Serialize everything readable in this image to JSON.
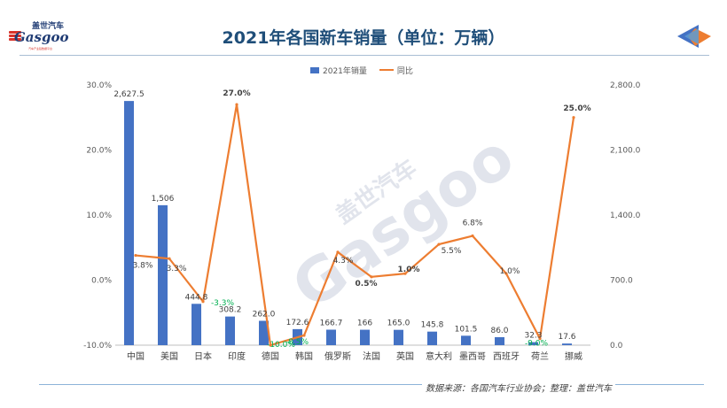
{
  "logo": {
    "name_cn": "盖世汽车",
    "name_en": "Gasgoo",
    "tagline": "汽车产业链数据平台"
  },
  "watermark": {
    "text_cn": "盖世汽车",
    "text_en": "Gasgoo"
  },
  "colors": {
    "bar": "#4472c4",
    "line": "#ed7d31",
    "title": "#1f4e79",
    "negative_label": "#00b050"
  },
  "chart_data": {
    "type": "bar",
    "title": "2021年各国新车销量（单位：万辆）",
    "categories": [
      "中国",
      "美国",
      "日本",
      "印度",
      "德国",
      "韩国",
      "俄罗斯",
      "法国",
      "英国",
      "意大利",
      "墨西哥",
      "西班牙",
      "荷兰",
      "挪威"
    ],
    "series": [
      {
        "name": "2021年销量",
        "type": "bar",
        "axis": "right",
        "values": [
          2627.5,
          1506,
          444.8,
          308.2,
          262.0,
          172.6,
          166.7,
          166,
          165.0,
          145.8,
          101.5,
          86.0,
          32.3,
          17.6
        ],
        "labels": [
          "2,627.5",
          "1,506",
          "444.8",
          "308.2",
          "262.0",
          "172.6",
          "166.7",
          "166",
          "165.0",
          "145.8",
          "101.5",
          "86.0",
          "32.3",
          "17.6"
        ]
      },
      {
        "name": "同比",
        "type": "line",
        "axis": "left",
        "values": [
          3.8,
          3.3,
          -3.3,
          27.0,
          -10.0,
          -8.5,
          4.3,
          0.5,
          1.0,
          5.5,
          6.8,
          1.0,
          -9.0,
          25.0
        ],
        "labels": [
          "3.8%",
          "3.3%",
          "-3.3%",
          "27.0%",
          "-10.0%",
          "-8.5%",
          "4.3%",
          "0.5%",
          "1.0%",
          "5.5%",
          "6.8%",
          "1.0%",
          "-9.0%",
          "25.0%"
        ]
      }
    ],
    "y_left": {
      "range": [
        -10,
        30
      ],
      "ticks": [
        "30.0%",
        "20.0%",
        "10.0%",
        "0.0%",
        "-10.0%"
      ]
    },
    "y_right": {
      "range": [
        0,
        2800
      ],
      "ticks": [
        "2,800.0",
        "2,100.0",
        "1,400.0",
        "700.0",
        "0.0"
      ]
    },
    "legend_position": "top-center",
    "grid": false
  },
  "source": "数据来源：各国汽车行业协会；整理：盖世汽车"
}
